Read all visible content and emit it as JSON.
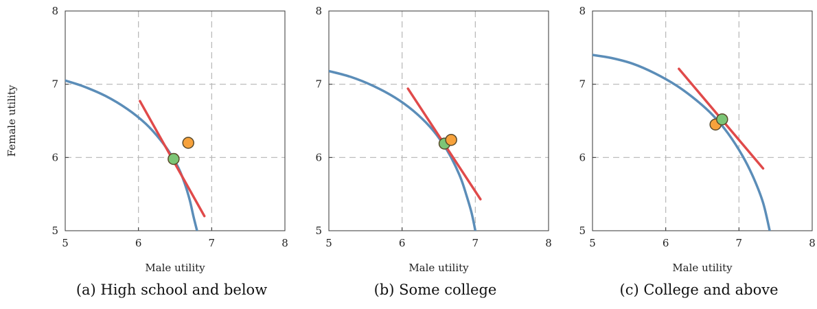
{
  "figure": {
    "ylabel": "Female utility",
    "xlabel": "Male utility"
  },
  "chart_data": [
    {
      "type": "line",
      "caption": "(a) High school and below",
      "xlabel": "Male utility",
      "ylabel": "Female utility",
      "xlim": [
        5,
        8
      ],
      "ylim": [
        5,
        8
      ],
      "xticks": [
        5,
        6,
        7,
        8
      ],
      "yticks": [
        5,
        6,
        7,
        8
      ],
      "grid": true,
      "frontier": {
        "x": [
          5.0,
          5.25,
          5.55,
          5.85,
          6.1,
          6.3,
          6.45,
          6.55,
          6.63,
          6.7,
          6.75,
          6.8
        ],
        "y": [
          7.05,
          6.97,
          6.84,
          6.66,
          6.46,
          6.24,
          6.03,
          5.85,
          5.65,
          5.42,
          5.2,
          5.0
        ]
      },
      "tangent": {
        "x": [
          6.02,
          6.9
        ],
        "y": [
          6.77,
          5.2
        ]
      },
      "points": [
        {
          "x": 6.48,
          "y": 5.98,
          "color": "#7cc576"
        },
        {
          "x": 6.68,
          "y": 6.2,
          "color": "#f7a23c"
        }
      ],
      "colors": {
        "frontier": "#5b8db8",
        "tangent": "#e04a4a"
      }
    },
    {
      "type": "line",
      "caption": "(b) Some college",
      "xlabel": "Male utility",
      "ylabel": "",
      "xlim": [
        5,
        8
      ],
      "ylim": [
        5,
        8
      ],
      "xticks": [
        5,
        6,
        7,
        8
      ],
      "yticks": [
        5,
        6,
        7,
        8
      ],
      "grid": true,
      "frontier": {
        "x": [
          5.0,
          5.3,
          5.6,
          5.9,
          6.15,
          6.38,
          6.55,
          6.68,
          6.8,
          6.88,
          6.95,
          7.0
        ],
        "y": [
          7.18,
          7.1,
          6.98,
          6.82,
          6.64,
          6.42,
          6.2,
          5.98,
          5.72,
          5.48,
          5.24,
          5.0
        ]
      },
      "tangent": {
        "x": [
          6.08,
          7.07
        ],
        "y": [
          6.94,
          5.43
        ]
      },
      "points": [
        {
          "x": 6.58,
          "y": 6.19,
          "color": "#7cc576"
        },
        {
          "x": 6.67,
          "y": 6.24,
          "color": "#f7a23c"
        }
      ],
      "colors": {
        "frontier": "#5b8db8",
        "tangent": "#e04a4a"
      }
    },
    {
      "type": "line",
      "caption": "(c) College and above",
      "xlabel": "Male utility",
      "ylabel": "",
      "xlim": [
        5,
        8
      ],
      "ylim": [
        5,
        8
      ],
      "xticks": [
        5,
        6,
        7,
        8
      ],
      "yticks": [
        5,
        6,
        7,
        8
      ],
      "grid": true,
      "frontier": {
        "x": [
          5.0,
          5.25,
          5.55,
          5.85,
          6.15,
          6.42,
          6.65,
          6.85,
          7.05,
          7.2,
          7.33,
          7.42
        ],
        "y": [
          7.4,
          7.36,
          7.28,
          7.15,
          6.98,
          6.78,
          6.57,
          6.33,
          6.02,
          5.72,
          5.38,
          5.0
        ]
      },
      "tangent": {
        "x": [
          6.18,
          7.33
        ],
        "y": [
          7.21,
          5.85
        ]
      },
      "points": [
        {
          "x": 6.77,
          "y": 6.52,
          "color": "#7cc576"
        },
        {
          "x": 6.68,
          "y": 6.45,
          "color": "#f7a23c"
        }
      ],
      "colors": {
        "frontier": "#5b8db8",
        "tangent": "#e04a4a"
      }
    }
  ]
}
